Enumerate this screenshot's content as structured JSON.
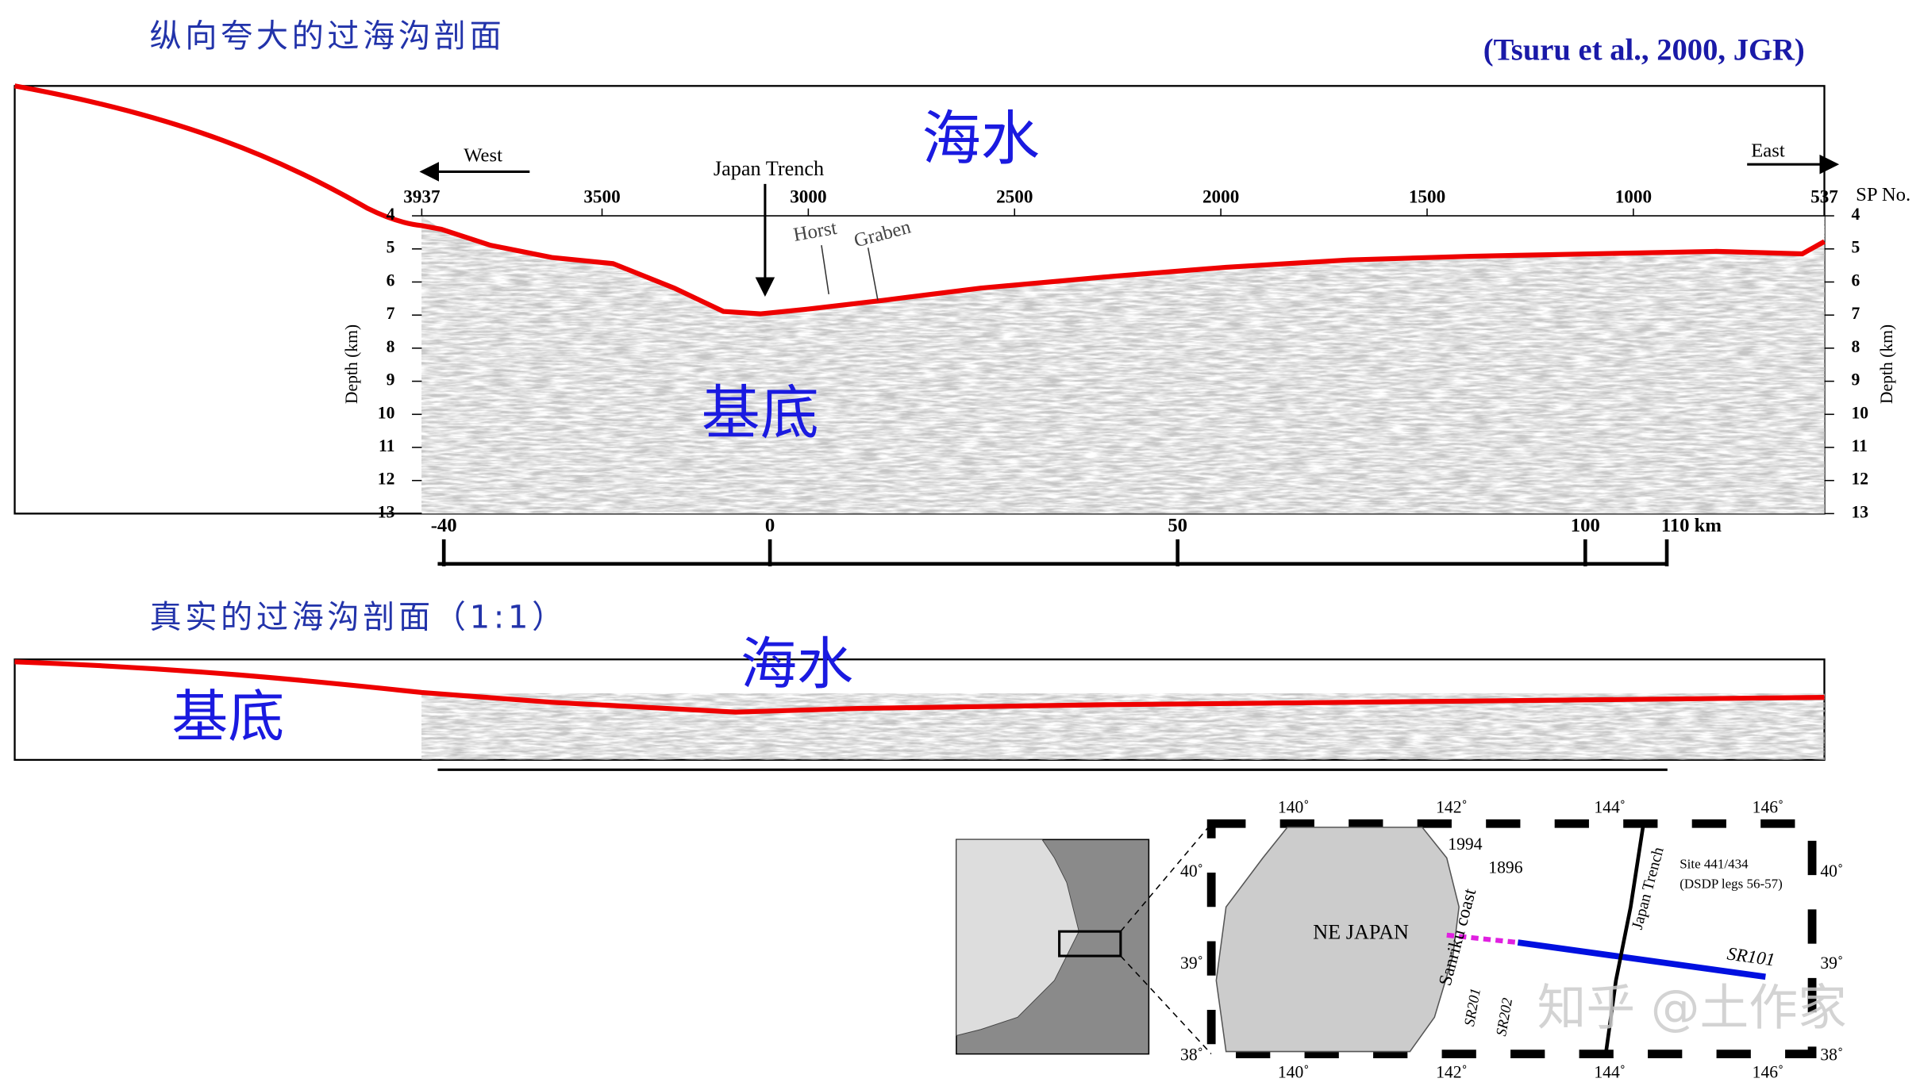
{
  "header": {
    "title": "纵向夸大的过海沟剖面",
    "citation": "(Tsuru et al., 2000, JGR)"
  },
  "exaggerated_profile": {
    "sea_label": "海水",
    "basement_label": "基底",
    "west": "West",
    "east": "East",
    "trench": "Japan Trench",
    "horst": "Horst",
    "graben": "Graben",
    "sp_ticks": [
      3937,
      3500,
      3000,
      2500,
      2000,
      1500,
      1000,
      537
    ],
    "sp_unit": "SP No.",
    "depth_ticks": [
      4,
      5,
      6,
      7,
      8,
      9,
      10,
      11,
      12,
      13
    ],
    "depth_label": "Depth (km)",
    "km_ticks": [
      -40,
      0,
      50,
      100,
      {
        "value": 110,
        "label": "110 km"
      }
    ]
  },
  "true_profile": {
    "title": "真实的过海沟剖面（1:1）",
    "sea_label": "海水",
    "basement_label": "基底"
  },
  "map": {
    "lon_labels": [
      "140˚",
      "142˚",
      "144˚",
      "146˚"
    ],
    "lat_labels": [
      "40˚",
      "39˚",
      "38˚"
    ],
    "land": "NE JAPAN",
    "coast": "Sanriku coast",
    "quake_1994": "1994",
    "quake_1896": "1896",
    "site": "Site 441/434",
    "site_legs": "(DSDP legs 56-57)",
    "trench": "Japan Trench",
    "line_sr101": "SR101",
    "line_sr201": "SR201",
    "line_sr202": "SR202"
  },
  "watermark": "知乎 @土作家"
}
